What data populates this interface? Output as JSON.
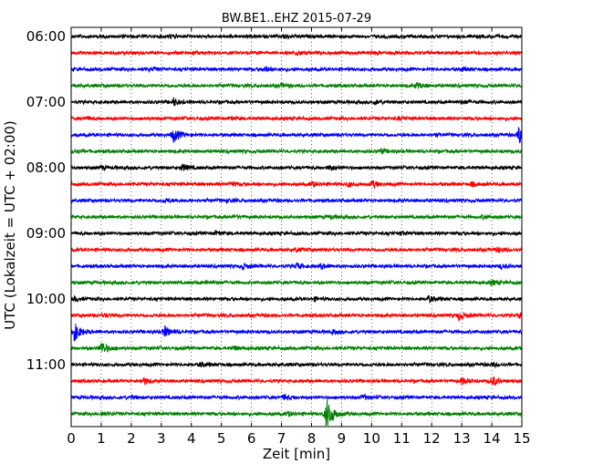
{
  "chart_data": {
    "type": "line",
    "title": "BW.BE1..EHZ 2015-07-29",
    "xlabel": "Zeit  [min]",
    "ylabel": "UTC (Lokalzeit = UTC + 02:00)",
    "xlim": [
      0,
      15
    ],
    "x_ticks": [
      "0",
      "1",
      "2",
      "3",
      "4",
      "5",
      "6",
      "7",
      "8",
      "9",
      "10",
      "11",
      "12",
      "13",
      "14",
      "15"
    ],
    "y_tick_labels": [
      "06:00",
      "07:00",
      "08:00",
      "09:00",
      "10:00",
      "11:00"
    ],
    "grid": "vertical dotted",
    "trace_colors": [
      "#000000",
      "#ff0000",
      "#0000ff",
      "#008000"
    ],
    "traces": [
      {
        "start": "06:00",
        "events": [
          [
            7.1,
            0.3
          ],
          [
            3.3,
            0.2
          ]
        ]
      },
      {
        "start": "06:15",
        "events": [
          [
            7.5,
            0.35
          ],
          [
            4.0,
            0.2
          ],
          [
            10.0,
            0.2
          ]
        ]
      },
      {
        "start": "06:30",
        "events": [
          [
            6.4,
            0.35
          ],
          [
            2.6,
            0.2
          ],
          [
            13.0,
            0.2
          ]
        ]
      },
      {
        "start": "06:45",
        "events": [
          [
            11.5,
            0.45
          ],
          [
            7.0,
            0.25
          ]
        ]
      },
      {
        "start": "07:00",
        "events": [
          [
            3.4,
            0.55
          ],
          [
            10.1,
            0.25
          ],
          [
            13.0,
            0.2
          ]
        ]
      },
      {
        "start": "07:15",
        "events": [
          [
            0.5,
            0.2
          ],
          [
            5.3,
            0.2
          ],
          [
            10.9,
            0.2
          ]
        ]
      },
      {
        "start": "07:30",
        "events": [
          [
            3.4,
            1.1
          ],
          [
            14.9,
            1.3
          ],
          [
            12.1,
            0.2
          ]
        ]
      },
      {
        "start": "07:45",
        "events": [
          [
            0.1,
            0.3
          ],
          [
            10.3,
            0.3
          ]
        ]
      },
      {
        "start": "08:00",
        "events": [
          [
            3.7,
            0.5
          ],
          [
            8.6,
            0.35
          ],
          [
            1.0,
            0.2
          ]
        ]
      },
      {
        "start": "08:15",
        "events": [
          [
            10.0,
            0.5
          ],
          [
            5.3,
            0.35
          ],
          [
            8.0,
            0.35
          ],
          [
            13.3,
            0.3
          ],
          [
            9.2,
            0.3
          ]
        ]
      },
      {
        "start": "08:30",
        "events": [
          [
            3.1,
            0.25
          ],
          [
            5.2,
            0.2
          ]
        ]
      },
      {
        "start": "08:45",
        "events": [
          [
            8.6,
            0.25
          ],
          [
            5.4,
            0.2
          ],
          [
            13.7,
            0.2
          ]
        ]
      },
      {
        "start": "09:00",
        "events": [
          [
            4.8,
            0.25
          ],
          [
            11.0,
            0.2
          ]
        ]
      },
      {
        "start": "09:15",
        "events": [
          [
            14.2,
            0.35
          ],
          [
            7.5,
            0.2
          ]
        ]
      },
      {
        "start": "09:30",
        "events": [
          [
            5.7,
            0.45
          ],
          [
            7.5,
            0.4
          ],
          [
            8.3,
            0.35
          ],
          [
            14.3,
            0.3
          ]
        ]
      },
      {
        "start": "09:45",
        "events": [
          [
            14.0,
            0.3
          ],
          [
            4.5,
            0.25
          ]
        ]
      },
      {
        "start": "10:00",
        "events": [
          [
            0.1,
            0.3
          ],
          [
            11.9,
            0.45
          ],
          [
            8.1,
            0.2
          ]
        ]
      },
      {
        "start": "10:15",
        "events": [
          [
            12.9,
            0.65
          ],
          [
            14.9,
            0.35
          ],
          [
            1.1,
            0.25
          ]
        ]
      },
      {
        "start": "10:30",
        "events": [
          [
            0.1,
            1.4
          ],
          [
            3.1,
            0.85
          ],
          [
            8.7,
            0.2
          ]
        ]
      },
      {
        "start": "10:45",
        "events": [
          [
            1.0,
            1.0
          ],
          [
            5.4,
            0.3
          ]
        ]
      },
      {
        "start": "11:00",
        "events": [
          [
            4.3,
            0.3
          ],
          [
            14.0,
            0.2
          ]
        ]
      },
      {
        "start": "11:15",
        "events": [
          [
            14.0,
            0.8
          ],
          [
            2.4,
            0.5
          ],
          [
            13.0,
            0.5
          ]
        ]
      },
      {
        "start": "11:30",
        "events": [
          [
            7.1,
            0.4
          ],
          [
            9.7,
            0.3
          ],
          [
            2.0,
            0.2
          ]
        ]
      },
      {
        "start": "11:45",
        "events": [
          [
            8.5,
            2.6
          ],
          [
            7.2,
            0.3
          ],
          [
            1.0,
            0.3
          ]
        ]
      }
    ]
  }
}
